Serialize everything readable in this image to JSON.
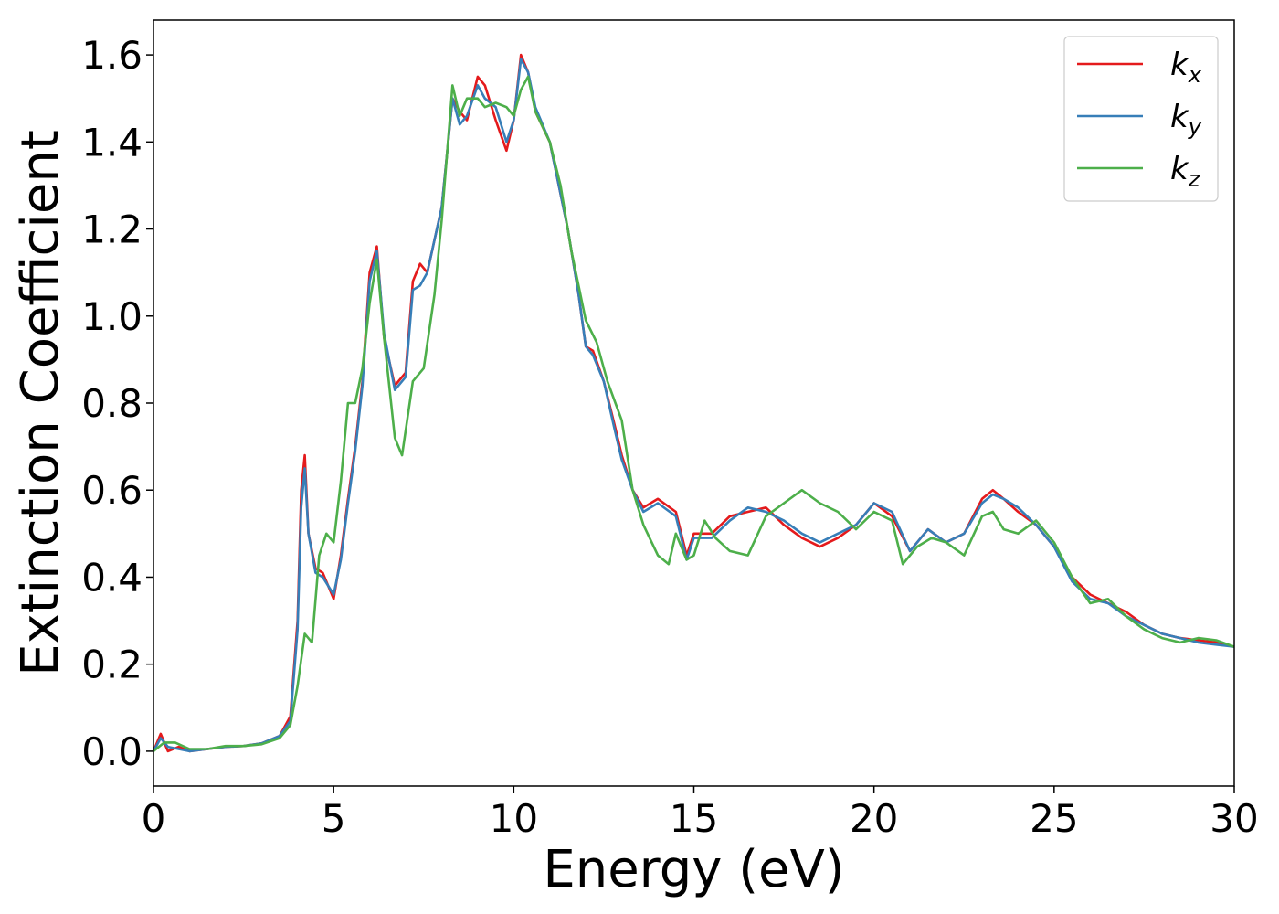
{
  "chart_data": {
    "type": "line",
    "title": "",
    "xlabel": "Energy (eV)",
    "ylabel": "Extinction Coefficient",
    "xlim": [
      0,
      30
    ],
    "ylim": [
      -0.08,
      1.68
    ],
    "xticks": [
      0,
      5,
      10,
      15,
      20,
      25,
      30
    ],
    "xtick_labels": [
      "0",
      "5",
      "10",
      "15",
      "20",
      "25",
      "30"
    ],
    "yticks": [
      0.0,
      0.2,
      0.4,
      0.6,
      0.8,
      1.0,
      1.2,
      1.4,
      1.6
    ],
    "ytick_labels": [
      "0.0",
      "0.2",
      "0.4",
      "0.6",
      "0.8",
      "1.0",
      "1.2",
      "1.4",
      "1.6"
    ],
    "grid": false,
    "legend_position": "top-right",
    "series": [
      {
        "name": "k",
        "subscript": "x",
        "color": "#e41a1c",
        "points": [
          [
            0,
            0.0
          ],
          [
            0.2,
            0.04
          ],
          [
            0.4,
            0.0
          ],
          [
            0.7,
            0.01
          ],
          [
            1.0,
            0.0
          ],
          [
            1.5,
            0.005
          ],
          [
            2.0,
            0.01
          ],
          [
            2.5,
            0.012
          ],
          [
            3.0,
            0.018
          ],
          [
            3.5,
            0.035
          ],
          [
            3.8,
            0.08
          ],
          [
            4.0,
            0.3
          ],
          [
            4.1,
            0.6
          ],
          [
            4.2,
            0.68
          ],
          [
            4.3,
            0.5
          ],
          [
            4.5,
            0.42
          ],
          [
            4.7,
            0.41
          ],
          [
            5.0,
            0.35
          ],
          [
            5.2,
            0.45
          ],
          [
            5.4,
            0.58
          ],
          [
            5.6,
            0.7
          ],
          [
            5.8,
            0.85
          ],
          [
            6.0,
            1.1
          ],
          [
            6.2,
            1.16
          ],
          [
            6.4,
            0.95
          ],
          [
            6.7,
            0.84
          ],
          [
            7.0,
            0.87
          ],
          [
            7.2,
            1.08
          ],
          [
            7.4,
            1.12
          ],
          [
            7.6,
            1.1
          ],
          [
            8.0,
            1.25
          ],
          [
            8.3,
            1.5
          ],
          [
            8.5,
            1.47
          ],
          [
            8.7,
            1.45
          ],
          [
            9.0,
            1.55
          ],
          [
            9.2,
            1.53
          ],
          [
            9.5,
            1.45
          ],
          [
            9.8,
            1.38
          ],
          [
            10.0,
            1.45
          ],
          [
            10.2,
            1.6
          ],
          [
            10.4,
            1.56
          ],
          [
            10.6,
            1.47
          ],
          [
            11.0,
            1.4
          ],
          [
            11.5,
            1.2
          ],
          [
            11.8,
            1.05
          ],
          [
            12.0,
            0.93
          ],
          [
            12.2,
            0.92
          ],
          [
            12.5,
            0.85
          ],
          [
            12.8,
            0.75
          ],
          [
            13.0,
            0.68
          ],
          [
            13.3,
            0.6
          ],
          [
            13.6,
            0.56
          ],
          [
            14.0,
            0.58
          ],
          [
            14.5,
            0.55
          ],
          [
            14.8,
            0.45
          ],
          [
            15.0,
            0.5
          ],
          [
            15.5,
            0.5
          ],
          [
            16.0,
            0.54
          ],
          [
            16.5,
            0.55
          ],
          [
            17.0,
            0.56
          ],
          [
            17.5,
            0.52
          ],
          [
            18.0,
            0.49
          ],
          [
            18.5,
            0.47
          ],
          [
            19.0,
            0.49
          ],
          [
            19.5,
            0.52
          ],
          [
            20.0,
            0.57
          ],
          [
            20.5,
            0.54
          ],
          [
            21.0,
            0.46
          ],
          [
            21.5,
            0.51
          ],
          [
            22.0,
            0.48
          ],
          [
            22.5,
            0.5
          ],
          [
            23.0,
            0.58
          ],
          [
            23.3,
            0.6
          ],
          [
            23.6,
            0.58
          ],
          [
            24.0,
            0.55
          ],
          [
            24.5,
            0.52
          ],
          [
            25.0,
            0.47
          ],
          [
            25.5,
            0.4
          ],
          [
            26.0,
            0.36
          ],
          [
            26.5,
            0.34
          ],
          [
            27.0,
            0.32
          ],
          [
            27.5,
            0.29
          ],
          [
            28.0,
            0.27
          ],
          [
            28.5,
            0.26
          ],
          [
            29.0,
            0.255
          ],
          [
            29.5,
            0.25
          ],
          [
            30.0,
            0.24
          ]
        ]
      },
      {
        "name": "k",
        "subscript": "y",
        "color": "#377eb8",
        "points": [
          [
            0,
            0.0
          ],
          [
            0.2,
            0.03
          ],
          [
            0.4,
            0.01
          ],
          [
            0.7,
            0.005
          ],
          [
            1.0,
            0.0
          ],
          [
            1.5,
            0.005
          ],
          [
            2.0,
            0.01
          ],
          [
            2.5,
            0.012
          ],
          [
            3.0,
            0.018
          ],
          [
            3.5,
            0.035
          ],
          [
            3.8,
            0.07
          ],
          [
            4.0,
            0.28
          ],
          [
            4.1,
            0.56
          ],
          [
            4.2,
            0.65
          ],
          [
            4.3,
            0.5
          ],
          [
            4.5,
            0.41
          ],
          [
            4.7,
            0.4
          ],
          [
            5.0,
            0.36
          ],
          [
            5.2,
            0.44
          ],
          [
            5.4,
            0.57
          ],
          [
            5.6,
            0.69
          ],
          [
            5.8,
            0.84
          ],
          [
            6.0,
            1.08
          ],
          [
            6.2,
            1.15
          ],
          [
            6.4,
            0.96
          ],
          [
            6.7,
            0.83
          ],
          [
            7.0,
            0.86
          ],
          [
            7.2,
            1.06
          ],
          [
            7.4,
            1.07
          ],
          [
            7.6,
            1.1
          ],
          [
            8.0,
            1.25
          ],
          [
            8.3,
            1.5
          ],
          [
            8.5,
            1.44
          ],
          [
            8.7,
            1.46
          ],
          [
            9.0,
            1.53
          ],
          [
            9.2,
            1.5
          ],
          [
            9.5,
            1.48
          ],
          [
            9.8,
            1.4
          ],
          [
            10.0,
            1.45
          ],
          [
            10.2,
            1.59
          ],
          [
            10.4,
            1.56
          ],
          [
            10.6,
            1.48
          ],
          [
            11.0,
            1.4
          ],
          [
            11.5,
            1.2
          ],
          [
            11.8,
            1.05
          ],
          [
            12.0,
            0.93
          ],
          [
            12.2,
            0.91
          ],
          [
            12.5,
            0.85
          ],
          [
            12.8,
            0.74
          ],
          [
            13.0,
            0.67
          ],
          [
            13.3,
            0.6
          ],
          [
            13.6,
            0.55
          ],
          [
            14.0,
            0.57
          ],
          [
            14.5,
            0.54
          ],
          [
            14.8,
            0.44
          ],
          [
            15.0,
            0.49
          ],
          [
            15.5,
            0.49
          ],
          [
            16.0,
            0.53
          ],
          [
            16.5,
            0.56
          ],
          [
            17.0,
            0.55
          ],
          [
            17.5,
            0.53
          ],
          [
            18.0,
            0.5
          ],
          [
            18.5,
            0.48
          ],
          [
            19.0,
            0.5
          ],
          [
            19.5,
            0.52
          ],
          [
            20.0,
            0.57
          ],
          [
            20.5,
            0.55
          ],
          [
            21.0,
            0.46
          ],
          [
            21.5,
            0.51
          ],
          [
            22.0,
            0.48
          ],
          [
            22.5,
            0.5
          ],
          [
            23.0,
            0.57
          ],
          [
            23.3,
            0.59
          ],
          [
            23.6,
            0.58
          ],
          [
            24.0,
            0.56
          ],
          [
            24.5,
            0.52
          ],
          [
            25.0,
            0.47
          ],
          [
            25.5,
            0.39
          ],
          [
            26.0,
            0.35
          ],
          [
            26.5,
            0.34
          ],
          [
            27.0,
            0.31
          ],
          [
            27.5,
            0.29
          ],
          [
            28.0,
            0.27
          ],
          [
            28.5,
            0.26
          ],
          [
            29.0,
            0.25
          ],
          [
            29.5,
            0.245
          ],
          [
            30.0,
            0.24
          ]
        ]
      },
      {
        "name": "k",
        "subscript": "z",
        "color": "#4daf4a",
        "points": [
          [
            0,
            0.0
          ],
          [
            0.3,
            0.02
          ],
          [
            0.6,
            0.02
          ],
          [
            1.0,
            0.005
          ],
          [
            1.5,
            0.005
          ],
          [
            2.0,
            0.012
          ],
          [
            2.5,
            0.012
          ],
          [
            3.0,
            0.016
          ],
          [
            3.5,
            0.03
          ],
          [
            3.8,
            0.06
          ],
          [
            4.0,
            0.15
          ],
          [
            4.2,
            0.27
          ],
          [
            4.4,
            0.25
          ],
          [
            4.6,
            0.45
          ],
          [
            4.8,
            0.5
          ],
          [
            5.0,
            0.48
          ],
          [
            5.2,
            0.62
          ],
          [
            5.4,
            0.8
          ],
          [
            5.6,
            0.8
          ],
          [
            5.8,
            0.88
          ],
          [
            6.0,
            1.03
          ],
          [
            6.2,
            1.13
          ],
          [
            6.4,
            0.95
          ],
          [
            6.7,
            0.72
          ],
          [
            6.9,
            0.68
          ],
          [
            7.2,
            0.85
          ],
          [
            7.5,
            0.88
          ],
          [
            7.8,
            1.05
          ],
          [
            8.0,
            1.22
          ],
          [
            8.3,
            1.53
          ],
          [
            8.5,
            1.46
          ],
          [
            8.7,
            1.5
          ],
          [
            9.0,
            1.5
          ],
          [
            9.2,
            1.48
          ],
          [
            9.5,
            1.49
          ],
          [
            9.8,
            1.48
          ],
          [
            10.0,
            1.46
          ],
          [
            10.2,
            1.52
          ],
          [
            10.4,
            1.55
          ],
          [
            10.6,
            1.47
          ],
          [
            11.0,
            1.4
          ],
          [
            11.3,
            1.3
          ],
          [
            11.6,
            1.15
          ],
          [
            12.0,
            0.99
          ],
          [
            12.3,
            0.94
          ],
          [
            12.6,
            0.85
          ],
          [
            13.0,
            0.76
          ],
          [
            13.3,
            0.6
          ],
          [
            13.6,
            0.52
          ],
          [
            14.0,
            0.45
          ],
          [
            14.3,
            0.43
          ],
          [
            14.5,
            0.5
          ],
          [
            14.8,
            0.44
          ],
          [
            15.0,
            0.45
          ],
          [
            15.3,
            0.53
          ],
          [
            15.6,
            0.49
          ],
          [
            16.0,
            0.46
          ],
          [
            16.5,
            0.45
          ],
          [
            17.0,
            0.54
          ],
          [
            17.5,
            0.57
          ],
          [
            18.0,
            0.6
          ],
          [
            18.5,
            0.57
          ],
          [
            19.0,
            0.55
          ],
          [
            19.5,
            0.51
          ],
          [
            20.0,
            0.55
          ],
          [
            20.5,
            0.53
          ],
          [
            20.8,
            0.43
          ],
          [
            21.2,
            0.47
          ],
          [
            21.6,
            0.49
          ],
          [
            22.0,
            0.48
          ],
          [
            22.5,
            0.45
          ],
          [
            23.0,
            0.54
          ],
          [
            23.3,
            0.55
          ],
          [
            23.6,
            0.51
          ],
          [
            24.0,
            0.5
          ],
          [
            24.5,
            0.53
          ],
          [
            25.0,
            0.48
          ],
          [
            25.5,
            0.4
          ],
          [
            26.0,
            0.34
          ],
          [
            26.5,
            0.35
          ],
          [
            27.0,
            0.31
          ],
          [
            27.5,
            0.28
          ],
          [
            28.0,
            0.26
          ],
          [
            28.5,
            0.25
          ],
          [
            29.0,
            0.26
          ],
          [
            29.5,
            0.255
          ],
          [
            30.0,
            0.24
          ]
        ]
      }
    ]
  }
}
